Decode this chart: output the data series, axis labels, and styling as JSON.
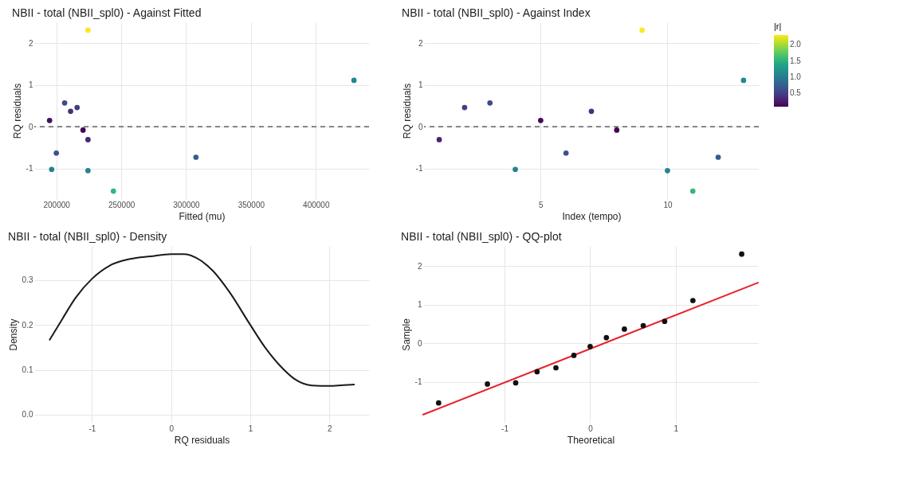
{
  "chart_data": [
    {
      "type": "scatter",
      "title": "NBII - total (NBII_spl0) - Against Fitted",
      "xlabel": "Fitted (mu)",
      "ylabel": "RQ residuals",
      "x": [
        224400,
        216000,
        206400,
        196400,
        194800,
        200000,
        211000,
        220600,
        224400,
        224400,
        244000,
        307600,
        429400
      ],
      "values": [
        -0.31,
        0.46,
        0.57,
        -1.02,
        0.15,
        -0.63,
        0.37,
        -0.08,
        2.31,
        -1.05,
        -1.54,
        -0.73,
        1.11
      ],
      "clabel": "|r|",
      "cvalues": [
        0.31,
        0.46,
        0.57,
        1.02,
        0.15,
        0.63,
        0.37,
        0.08,
        2.31,
        1.05,
        1.54,
        0.73,
        1.11
      ],
      "clim": [
        0.07,
        2.31
      ],
      "cticks": [
        {
          "value": 0.5,
          "label": "0.5"
        },
        {
          "value": 1,
          "label": "1.0"
        },
        {
          "value": 1.5,
          "label": "1.5"
        },
        {
          "value": 2,
          "label": "2.0"
        }
      ],
      "xlim": [
        183000,
        441000
      ],
      "ylim": [
        -1.73,
        2.5
      ],
      "xticks": [
        200000,
        250000,
        300000,
        350000,
        400000
      ],
      "yticks": [
        -1,
        0,
        1,
        2
      ],
      "ref_lines": [
        {
          "axis": "y",
          "value": 0,
          "line_style": "dashed"
        }
      ],
      "grid": true,
      "marker": "circle"
    },
    {
      "type": "scatter",
      "title": "NBII - total (NBII_spl0) - Against Index",
      "xlabel": "Index (tempo)",
      "ylabel": "RQ residuals",
      "x": [
        1,
        2,
        3,
        4,
        5,
        6,
        7,
        8,
        9,
        10,
        11,
        12,
        13
      ],
      "values": [
        -0.31,
        0.46,
        0.57,
        -1.02,
        0.15,
        -0.63,
        0.37,
        -0.08,
        2.31,
        -1.05,
        -1.54,
        -0.73,
        1.11
      ],
      "colors": [
        "#482475",
        "#433e85",
        "#3e4a89",
        "#27808e",
        "#46085c",
        "#3b528b",
        "#472f7d",
        "#440154",
        "#fde725",
        "#25848e",
        "#35b779",
        "#365c8d",
        "#23898e"
      ],
      "xlim": [
        0.4,
        13.6
      ],
      "ylim": [
        -1.73,
        2.5
      ],
      "xticks": [
        5,
        10
      ],
      "yticks": [
        -1,
        0,
        1,
        2
      ],
      "ref_lines": [
        {
          "axis": "y",
          "value": 0,
          "line_style": "dashed"
        }
      ],
      "grid": true,
      "marker": "circle"
    },
    {
      "type": "line",
      "title": "NBII - total (NBII_spl0) - Density",
      "xlabel": "RQ residuals",
      "ylabel": "Density",
      "color": "#1a1a1a",
      "x": [
        -1.535,
        -1.38,
        -1.21,
        -1.0,
        -0.78,
        -0.52,
        -0.26,
        0,
        0.17,
        0.37,
        0.53,
        0.73,
        1.0,
        1.19,
        1.42,
        1.58,
        1.78,
        2.0,
        2.18,
        2.31
      ],
      "values": [
        0.167,
        0.212,
        0.26,
        0.303,
        0.332,
        0.347,
        0.353,
        0.358,
        0.358,
        0.344,
        0.32,
        0.275,
        0.2,
        0.149,
        0.101,
        0.077,
        0.065,
        0.064,
        0.066,
        0.067
      ],
      "xlim": [
        -1.73,
        2.5
      ],
      "ylim": [
        -0.018,
        0.376
      ],
      "xticks": [
        -1,
        0,
        1,
        2
      ],
      "yticks": [
        {
          "value": 0,
          "label": "0.0"
        },
        0.1,
        0.2,
        0.3
      ],
      "grid": true
    },
    {
      "type": "scatter",
      "title": "NBII - total (NBII_spl0) - QQ-plot",
      "xlabel": "Theoretical",
      "ylabel": "Sample",
      "series": [
        {
          "color": "#111111",
          "marker": "circle",
          "x": [
            -1.77,
            -1.2,
            -0.87,
            -0.62,
            -0.4,
            -0.19,
            0,
            0.19,
            0.4,
            0.62,
            0.87,
            1.2,
            1.77
          ],
          "values": [
            -1.54,
            -1.05,
            -1.02,
            -0.73,
            -0.63,
            -0.31,
            -0.08,
            0.15,
            0.37,
            0.46,
            0.57,
            1.11,
            2.31
          ]
        },
        {
          "type": "line",
          "color": "#e8202a",
          "x": [
            -1.95,
            1.96
          ],
          "values": [
            -1.84,
            1.57
          ]
        }
      ],
      "xlim": [
        -1.95,
        1.96
      ],
      "ylim": [
        -2.05,
        2.52
      ],
      "xticks": [
        -1,
        0,
        1
      ],
      "yticks": [
        -1,
        0,
        1,
        2
      ],
      "grid": true
    }
  ]
}
